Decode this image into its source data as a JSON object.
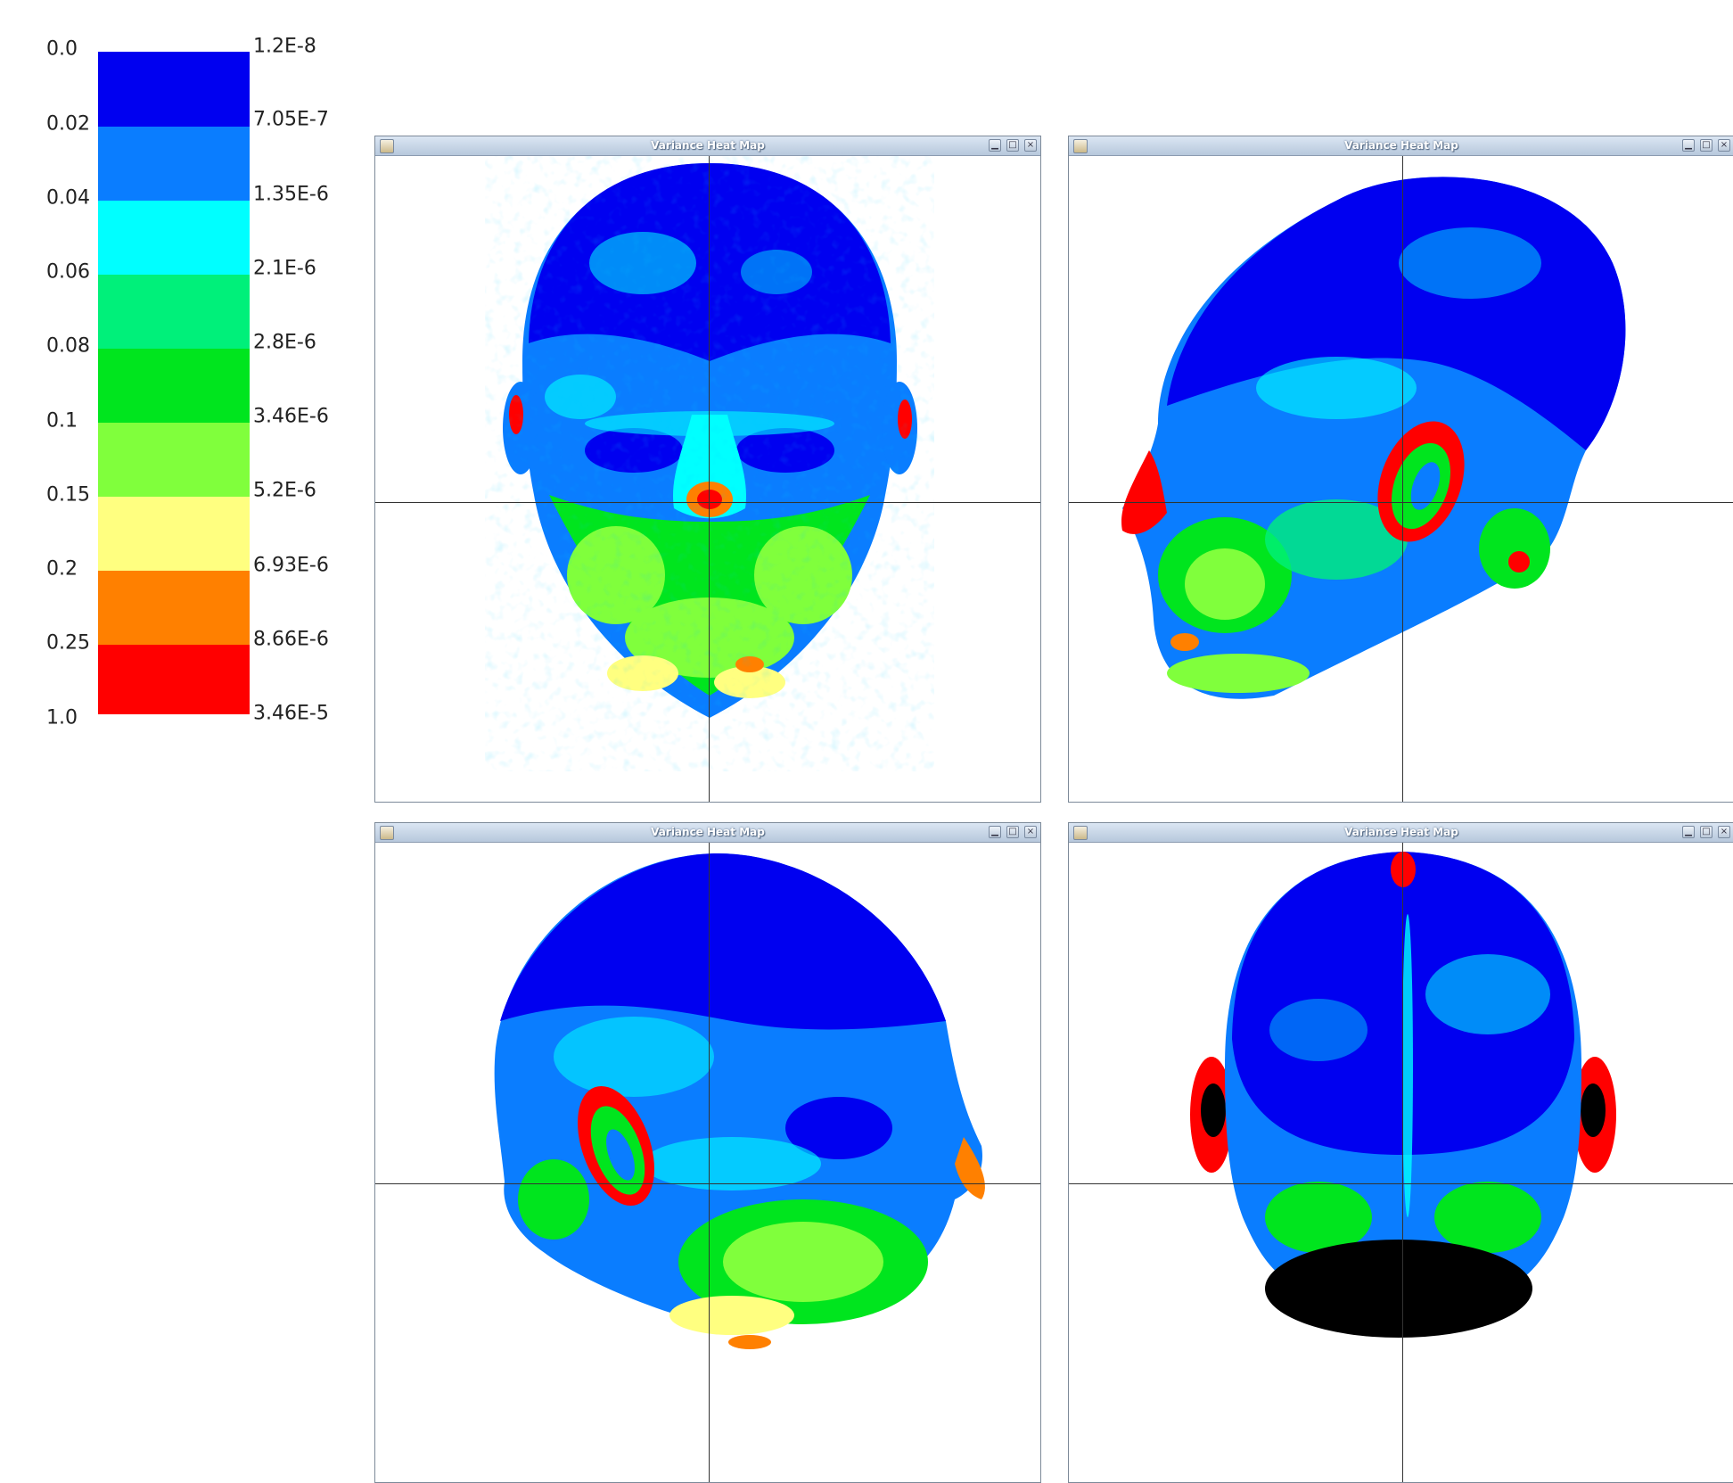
{
  "legend": {
    "left_labels": [
      "0.0",
      "0.02",
      "0.04",
      "0.06",
      "0.08",
      "0.1",
      "0.15",
      "0.2",
      "0.25",
      "1.0"
    ],
    "right_labels": [
      "1.2E-8",
      "7.05E-7",
      "1.35E-6",
      "2.1E-6",
      "2.8E-6",
      "3.46E-6",
      "5.2E-6",
      "6.93E-6",
      "8.66E-6",
      "3.46E-5"
    ],
    "colors": [
      "#0000f0",
      "#0a7dff",
      "#00ffff",
      "#00f07a",
      "#00e51e",
      "#80ff3c",
      "#ffff80",
      "#ff8000",
      "#ff0000"
    ]
  },
  "windows": [
    {
      "title": "Variance Heat Map",
      "view": "front-face"
    },
    {
      "title": "Variance Heat Map",
      "view": "left-profile"
    },
    {
      "title": "Variance Heat Map",
      "view": "right-back-oblique"
    },
    {
      "title": "Variance Heat Map",
      "view": "back-of-head"
    }
  ],
  "window_controls": {
    "minimize_icon": "minimize-icon",
    "maximize_icon": "maximize-icon",
    "close_icon": "close-icon"
  }
}
